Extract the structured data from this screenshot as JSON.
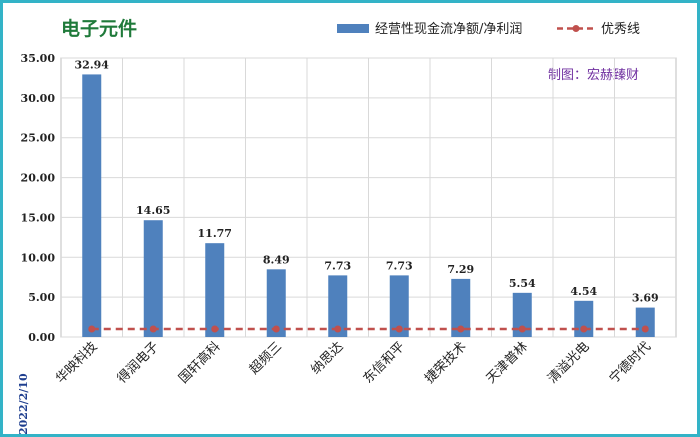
{
  "chart_data": {
    "type": "bar",
    "title": "电子元件",
    "categories": [
      "华映科技",
      "得润电子",
      "国轩高科",
      "超频三",
      "纳思达",
      "东信和平",
      "捷荣技术",
      "天津普林",
      "清溢光电",
      "宁德时代"
    ],
    "series": [
      {
        "name": "经营性现金流净额/净利润",
        "type": "bar",
        "color": "#4f81bd",
        "values": [
          32.94,
          14.65,
          11.77,
          8.49,
          7.73,
          7.73,
          7.29,
          5.54,
          4.54,
          3.69
        ],
        "labels": [
          "32.94",
          "14.65",
          "11.77",
          "8.49",
          "7.73",
          "7.73",
          "7.29",
          "5.54",
          "4.54",
          "3.69"
        ]
      },
      {
        "name": "优秀线",
        "type": "line",
        "style": "dashed",
        "color": "#c0504d",
        "values": [
          1,
          1,
          1,
          1,
          1,
          1,
          1,
          1,
          1,
          1
        ]
      }
    ],
    "ylim": [
      0,
      35
    ],
    "yticks": [
      "0.00",
      "5.00",
      "10.00",
      "15.00",
      "20.00",
      "25.00",
      "30.00",
      "35.00"
    ],
    "grid": true,
    "legend": "top-right",
    "annotation": "制图：宏赫臻财",
    "date": "2022/2/10"
  }
}
